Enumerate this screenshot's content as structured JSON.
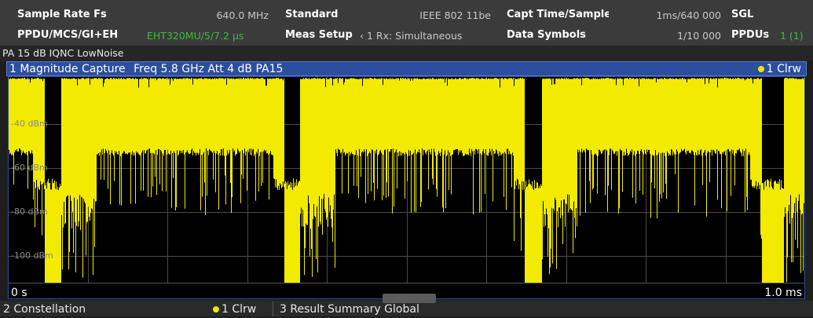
{
  "header": {
    "rows": [
      [
        {
          "label": "Sample Rate Fs",
          "value": "640.0 MHz"
        },
        {
          "label": "Standard",
          "value": "IEEE 802 11be"
        },
        {
          "label": "Capt Time/Sample:",
          "value": "1ms/640 000"
        },
        {
          "label": "SGL"
        }
      ],
      [
        {
          "label": "PPDU/MCS/GI+EH",
          "value": "EHT320MU/5/7.2 µs"
        },
        {
          "label": "Meas Setup",
          "value": "‹ 1 Rx: Simultaneous"
        },
        {
          "label": "Data Symbols",
          "value": "1/10 000"
        },
        {
          "label": "PPDUs",
          "value": "1 (1)"
        }
      ]
    ],
    "status": "PA 15 dB IQNC LowNoise"
  },
  "window": {
    "title": "1 Magnitude Capture",
    "info": "Freq 5.8 GHz Att 4 dB PA15",
    "trace": "1 Clrw",
    "y_labels": [
      "-40 dBm",
      "-60 dBm",
      "-80 dBm",
      "-100 dBm"
    ],
    "x_start": "0 s",
    "x_end": "1.0 ms"
  },
  "tabs": [
    {
      "title": "2 Constellation",
      "trace": "1 Clrw"
    },
    {
      "title": "3 Result Summary Global"
    }
  ]
}
